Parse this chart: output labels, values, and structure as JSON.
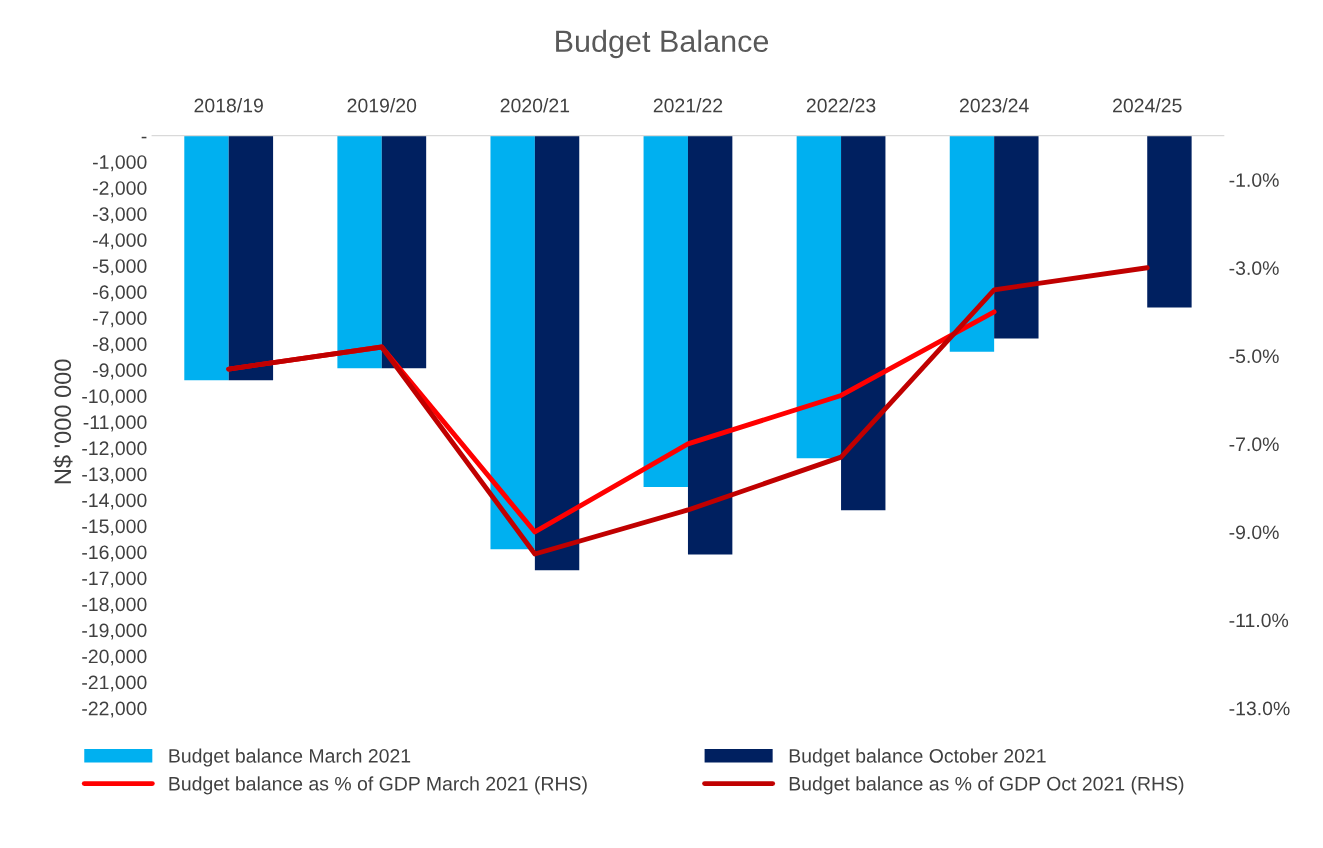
{
  "chart_data": {
    "type": "bar",
    "title": "Budget Balance",
    "ylabel": "N$ '000 000",
    "categories": [
      "2018/19",
      "2019/20",
      "2020/21",
      "2021/22",
      "2022/23",
      "2023/24",
      "2024/25"
    ],
    "series": [
      {
        "name": "Budget balance March 2021",
        "color": "#00b0f0",
        "values": [
          -9400,
          -8940,
          -15900,
          -13500,
          -12400,
          -8300,
          null
        ]
      },
      {
        "name": "Budget balance October 2021",
        "color": "#002060",
        "values": [
          -9400,
          -8940,
          -16700,
          -16100,
          -14400,
          -7800,
          -6600
        ]
      },
      {
        "name": "Budget balance as % of GDP March 2021 (RHS)",
        "type": "line",
        "axis": "y2",
        "color": "#ff0000",
        "values": [
          -5.3,
          -4.8,
          -9.0,
          -7.0,
          -5.9,
          -4.0,
          null
        ]
      },
      {
        "name": "Budget balance as % of GDP Oct 2021 (RHS)",
        "type": "line",
        "axis": "y2",
        "color": "#c00000",
        "values": [
          -5.3,
          -4.8,
          -9.5,
          -8.5,
          -7.3,
          -3.5,
          -3.0
        ]
      }
    ],
    "ylim": [
      -22000,
      0
    ],
    "yticks": [
      {
        "value": 0,
        "label": "-"
      },
      {
        "value": -1000,
        "label": "-1,000"
      },
      {
        "value": -2000,
        "label": "-2,000"
      },
      {
        "value": -3000,
        "label": "-3,000"
      },
      {
        "value": -4000,
        "label": "-4,000"
      },
      {
        "value": -5000,
        "label": "-5,000"
      },
      {
        "value": -6000,
        "label": "-6,000"
      },
      {
        "value": -7000,
        "label": "-7,000"
      },
      {
        "value": -8000,
        "label": "-8,000"
      },
      {
        "value": -9000,
        "label": "-9,000"
      },
      {
        "value": -10000,
        "label": "-10,000"
      },
      {
        "value": -11000,
        "label": "-11,000"
      },
      {
        "value": -12000,
        "label": "-12,000"
      },
      {
        "value": -13000,
        "label": "-13,000"
      },
      {
        "value": -14000,
        "label": "-14,000"
      },
      {
        "value": -15000,
        "label": "-15,000"
      },
      {
        "value": -16000,
        "label": "-16,000"
      },
      {
        "value": -17000,
        "label": "-17,000"
      },
      {
        "value": -18000,
        "label": "-18,000"
      },
      {
        "value": -19000,
        "label": "-19,000"
      },
      {
        "value": -20000,
        "label": "-20,000"
      },
      {
        "value": -21000,
        "label": "-21,000"
      },
      {
        "value": -22000,
        "label": "-22,000"
      }
    ],
    "y2lim": [
      -13,
      0
    ],
    "y2ticks": [
      {
        "value": -1,
        "label": "-1.0%"
      },
      {
        "value": -3,
        "label": "-3.0%"
      },
      {
        "value": -5,
        "label": "-5.0%"
      },
      {
        "value": -7,
        "label": "-7.0%"
      },
      {
        "value": -9,
        "label": "-9.0%"
      },
      {
        "value": -11,
        "label": "-11.0%"
      },
      {
        "value": -13,
        "label": "-13.0%"
      }
    ],
    "grid": false,
    "legend": "bottom",
    "line_style": "solid",
    "marker": "none"
  }
}
